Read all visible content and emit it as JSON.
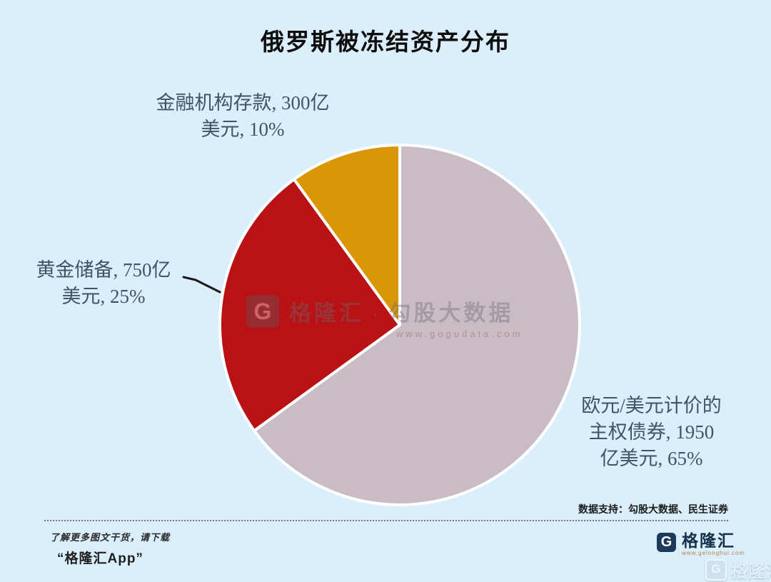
{
  "title": "俄罗斯被冻结资产分布",
  "chart_data": {
    "type": "pie",
    "title": "俄罗斯被冻结资产分布",
    "unit": "亿美元",
    "start_angle": "top",
    "direction": "clockwise",
    "legend": "none",
    "separator_color": "#ffffff",
    "slices": [
      {
        "id": "bonds",
        "name": "欧元/美元计价的主权债券",
        "value": 1950,
        "percent": 65,
        "color": "#c9bcc4",
        "label_lines": [
          "欧元/美元计价的",
          "主权债券, 1950",
          "亿美元, 65%"
        ]
      },
      {
        "id": "gold",
        "name": "黄金储备",
        "value": 750,
        "percent": 25,
        "color": "#b91114",
        "label_lines": [
          "黄金储备, 750亿",
          "美元, 25%"
        ]
      },
      {
        "id": "deposits",
        "name": "金融机构存款",
        "value": 300,
        "percent": 10,
        "color": "#d99708",
        "label_lines": [
          "金融机构存款, 300亿",
          "美元, 10%"
        ]
      }
    ]
  },
  "watermark_center": {
    "logo_letter": "G",
    "brand": "格隆汇",
    "dot": "·",
    "partner": "勾股大数据",
    "url": "www.gogudata.com"
  },
  "footer": {
    "data_support": "数据支持：勾股大数据、民生证券",
    "promo_line1": "了解更多图文干货，请下载",
    "promo_line2": "“格隆汇App”"
  },
  "brand_logo": {
    "letter": "G",
    "name": "格隆汇",
    "url": "www.gelonghui.com"
  },
  "corner_watermark": {
    "letter": "G",
    "name": "格隆汇"
  },
  "colors": {
    "background": "#daeefb",
    "label_text": "#3f5469",
    "title_text": "#0d0d0d",
    "leader_line": "#1a1a1a"
  }
}
